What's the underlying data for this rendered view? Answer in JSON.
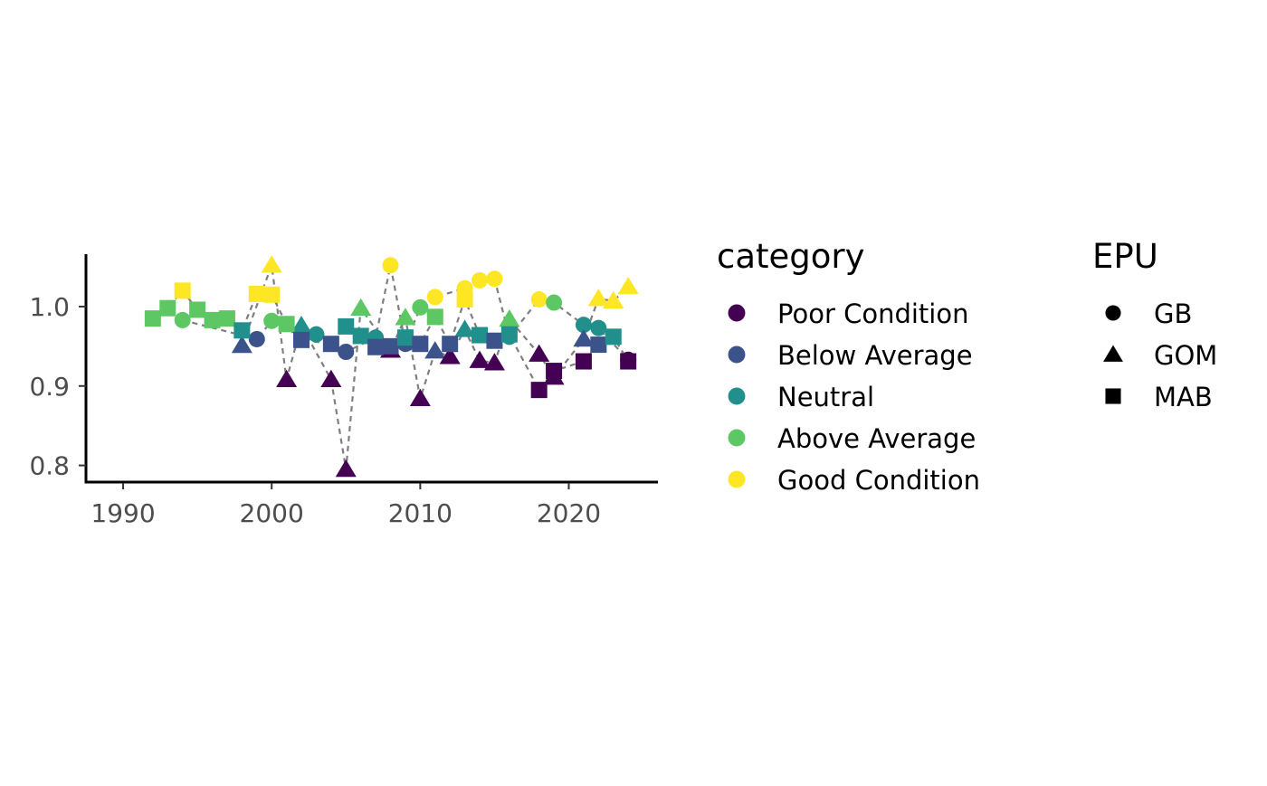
{
  "chart_data": {
    "type": "scatter",
    "title": "",
    "xlabel": "",
    "ylabel": "",
    "xlim": [
      1987.5,
      2026
    ],
    "ylim": [
      0.779,
      1.066
    ],
    "x_ticks": [
      1990,
      2000,
      2010,
      2020
    ],
    "y_ticks": [
      0.8,
      0.9,
      1.0
    ],
    "y_tick_labels": [
      "0.8",
      "0.9",
      "1.0"
    ],
    "grid": false,
    "connector_style": "dashed grey lines joining consecutive years within each EPU",
    "legend": {
      "placement": "right",
      "color_title": "category",
      "shape_title": "EPU",
      "categories": [
        {
          "name": "Poor Condition",
          "color": "#440154"
        },
        {
          "name": "Below Average",
          "color": "#3B528B"
        },
        {
          "name": "Neutral",
          "color": "#21908C"
        },
        {
          "name": "Above Average",
          "color": "#5DC863"
        },
        {
          "name": "Good Condition",
          "color": "#FDE725"
        }
      ],
      "shapes": [
        {
          "name": "GB",
          "shape": "circle"
        },
        {
          "name": "GOM",
          "shape": "triangle"
        },
        {
          "name": "MAB",
          "shape": "square"
        }
      ]
    },
    "series": [
      {
        "name": "GB",
        "points": [
          {
            "x": 1994,
            "y": 0.983,
            "category": "Above Average"
          },
          {
            "x": 1999,
            "y": 0.959,
            "category": "Below Average"
          },
          {
            "x": 2000,
            "y": 0.982,
            "category": "Above Average"
          },
          {
            "x": 2003,
            "y": 0.965,
            "category": "Neutral"
          },
          {
            "x": 2005,
            "y": 0.943,
            "category": "Below Average"
          },
          {
            "x": 2007,
            "y": 0.961,
            "category": "Neutral"
          },
          {
            "x": 2008,
            "y": 1.052,
            "category": "Good Condition"
          },
          {
            "x": 2009,
            "y": 0.953,
            "category": "Below Average"
          },
          {
            "x": 2010,
            "y": 0.999,
            "category": "Above Average"
          },
          {
            "x": 2011,
            "y": 1.012,
            "category": "Good Condition"
          },
          {
            "x": 2013,
            "y": 1.023,
            "category": "Good Condition"
          },
          {
            "x": 2014,
            "y": 1.033,
            "category": "Good Condition"
          },
          {
            "x": 2015,
            "y": 1.035,
            "category": "Good Condition"
          },
          {
            "x": 2016,
            "y": 0.962,
            "category": "Neutral"
          },
          {
            "x": 2018,
            "y": 1.009,
            "category": "Good Condition"
          },
          {
            "x": 2019,
            "y": 1.005,
            "category": "Above Average"
          },
          {
            "x": 2021,
            "y": 0.977,
            "category": "Neutral"
          },
          {
            "x": 2022,
            "y": 0.973,
            "category": "Neutral"
          },
          {
            "x": 2024,
            "y": 0.933,
            "category": "Poor Condition"
          }
        ]
      },
      {
        "name": "GOM",
        "points": [
          {
            "x": 1998,
            "y": 0.951,
            "category": "Below Average"
          },
          {
            "x": 2000,
            "y": 1.052,
            "category": "Good Condition"
          },
          {
            "x": 2001,
            "y": 0.908,
            "category": "Poor Condition"
          },
          {
            "x": 2002,
            "y": 0.976,
            "category": "Neutral"
          },
          {
            "x": 2004,
            "y": 0.908,
            "category": "Poor Condition"
          },
          {
            "x": 2005,
            "y": 0.795,
            "category": "Poor Condition"
          },
          {
            "x": 2006,
            "y": 0.998,
            "category": "Above Average"
          },
          {
            "x": 2008,
            "y": 0.945,
            "category": "Poor Condition"
          },
          {
            "x": 2009,
            "y": 0.986,
            "category": "Above Average"
          },
          {
            "x": 2010,
            "y": 0.884,
            "category": "Poor Condition"
          },
          {
            "x": 2011,
            "y": 0.944,
            "category": "Below Average"
          },
          {
            "x": 2012,
            "y": 0.937,
            "category": "Poor Condition"
          },
          {
            "x": 2013,
            "y": 0.971,
            "category": "Neutral"
          },
          {
            "x": 2014,
            "y": 0.932,
            "category": "Poor Condition"
          },
          {
            "x": 2015,
            "y": 0.929,
            "category": "Poor Condition"
          },
          {
            "x": 2016,
            "y": 0.984,
            "category": "Above Average"
          },
          {
            "x": 2018,
            "y": 0.94,
            "category": "Poor Condition"
          },
          {
            "x": 2019,
            "y": 0.911,
            "category": "Poor Condition"
          },
          {
            "x": 2021,
            "y": 0.959,
            "category": "Below Average"
          },
          {
            "x": 2022,
            "y": 1.01,
            "category": "Good Condition"
          },
          {
            "x": 2023,
            "y": 1.007,
            "category": "Good Condition"
          },
          {
            "x": 2024,
            "y": 1.025,
            "category": "Good Condition"
          }
        ]
      },
      {
        "name": "MAB",
        "points": [
          {
            "x": 1992,
            "y": 0.985,
            "category": "Above Average"
          },
          {
            "x": 1993,
            "y": 0.998,
            "category": "Above Average"
          },
          {
            "x": 1994,
            "y": 1.02,
            "category": "Good Condition"
          },
          {
            "x": 1995,
            "y": 0.996,
            "category": "Above Average"
          },
          {
            "x": 1996,
            "y": 0.983,
            "category": "Above Average"
          },
          {
            "x": 1997,
            "y": 0.985,
            "category": "Above Average"
          },
          {
            "x": 1998,
            "y": 0.97,
            "category": "Neutral"
          },
          {
            "x": 1999,
            "y": 1.016,
            "category": "Good Condition"
          },
          {
            "x": 2000,
            "y": 1.015,
            "category": "Good Condition"
          },
          {
            "x": 2001,
            "y": 0.978,
            "category": "Above Average"
          },
          {
            "x": 2002,
            "y": 0.958,
            "category": "Below Average"
          },
          {
            "x": 2004,
            "y": 0.953,
            "category": "Below Average"
          },
          {
            "x": 2005,
            "y": 0.975,
            "category": "Neutral"
          },
          {
            "x": 2006,
            "y": 0.963,
            "category": "Neutral"
          },
          {
            "x": 2007,
            "y": 0.949,
            "category": "Below Average"
          },
          {
            "x": 2008,
            "y": 0.95,
            "category": "Below Average"
          },
          {
            "x": 2009,
            "y": 0.961,
            "category": "Neutral"
          },
          {
            "x": 2010,
            "y": 0.953,
            "category": "Below Average"
          },
          {
            "x": 2011,
            "y": 0.987,
            "category": "Above Average"
          },
          {
            "x": 2012,
            "y": 0.953,
            "category": "Below Average"
          },
          {
            "x": 2013,
            "y": 1.009,
            "category": "Good Condition"
          },
          {
            "x": 2014,
            "y": 0.964,
            "category": "Neutral"
          },
          {
            "x": 2015,
            "y": 0.957,
            "category": "Below Average"
          },
          {
            "x": 2016,
            "y": 0.965,
            "category": "Neutral"
          },
          {
            "x": 2018,
            "y": 0.895,
            "category": "Poor Condition"
          },
          {
            "x": 2019,
            "y": 0.919,
            "category": "Poor Condition"
          },
          {
            "x": 2021,
            "y": 0.931,
            "category": "Poor Condition"
          },
          {
            "x": 2022,
            "y": 0.952,
            "category": "Below Average"
          },
          {
            "x": 2023,
            "y": 0.962,
            "category": "Neutral"
          },
          {
            "x": 2024,
            "y": 0.931,
            "category": "Poor Condition"
          }
        ]
      }
    ]
  }
}
